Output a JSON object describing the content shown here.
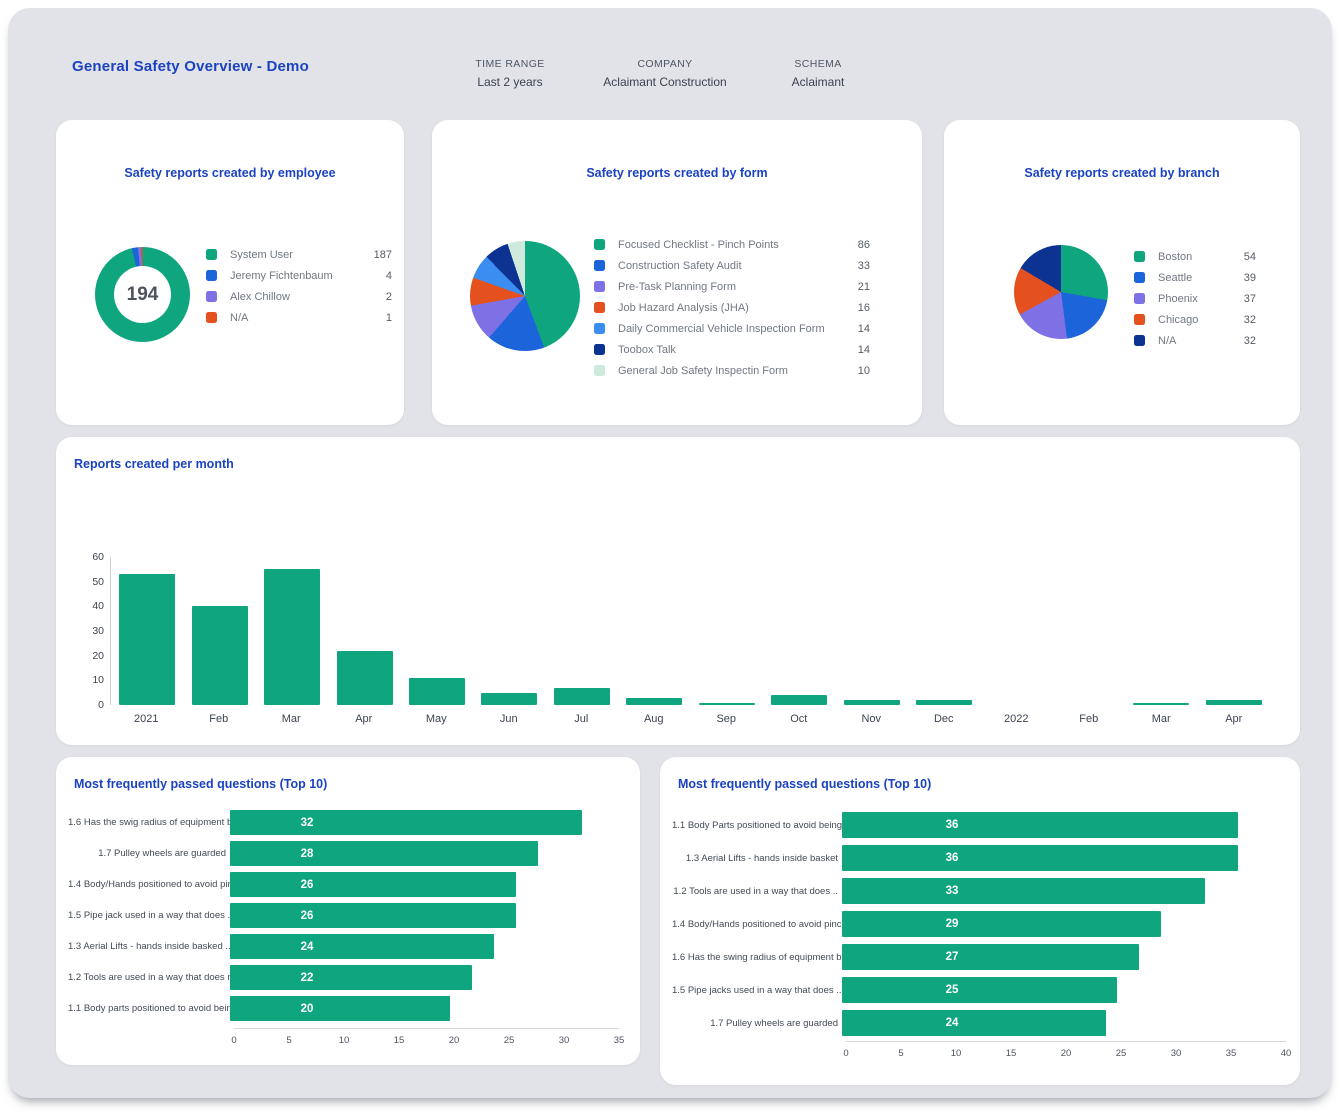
{
  "header": {
    "title": "General Safety Overview - Demo",
    "filters": [
      {
        "label": "TIME RANGE",
        "value": "Last 2 years"
      },
      {
        "label": "COMPANY",
        "value": "Aclaimant Construction"
      },
      {
        "label": "SCHEMA",
        "value": "Aclaimant"
      }
    ]
  },
  "colors": {
    "panel_bg": "#e2e3e8",
    "card_bg": "#ffffff",
    "title_blue": "#1b43c1",
    "green": "#0ea57f",
    "blue": "#1c64d9",
    "purple": "#7e71e6",
    "orange": "#e4511e",
    "light_blue": "#3c8df1",
    "navy": "#0c3391",
    "mint": "#cdeadd"
  },
  "chart_data": [
    {
      "id": "employee",
      "type": "pie",
      "variant": "donut",
      "title": "Safety reports created by employee",
      "center_total": "194",
      "legend_position": "right",
      "series": [
        {
          "name": "System User",
          "value": 187,
          "color": "#0ea57f"
        },
        {
          "name": "Jeremy Fichtenbaum",
          "value": 4,
          "color": "#1c64d9"
        },
        {
          "name": "Alex Chillow",
          "value": 2,
          "color": "#7e71e6"
        },
        {
          "name": "N/A",
          "value": 1,
          "color": "#e4511e"
        }
      ]
    },
    {
      "id": "form",
      "type": "pie",
      "variant": "pie",
      "title": "Safety reports created by form",
      "legend_position": "right",
      "series": [
        {
          "name": "Focused Checklist - Pinch Points",
          "value": 86,
          "color": "#0ea57f"
        },
        {
          "name": "Construction Safety Audit",
          "value": 33,
          "color": "#1c64d9"
        },
        {
          "name": "Pre-Task Planning Form",
          "value": 21,
          "color": "#7e71e6"
        },
        {
          "name": "Job Hazard Analysis (JHA)",
          "value": 16,
          "color": "#e4511e"
        },
        {
          "name": "Daily Commercial Vehicle Inspection Form",
          "value": 14,
          "color": "#3c8df1"
        },
        {
          "name": "Toobox Talk",
          "value": 14,
          "color": "#0c3391"
        },
        {
          "name": "General Job Safety Inspectin Form",
          "value": 10,
          "color": "#cdeadd"
        }
      ]
    },
    {
      "id": "branch",
      "type": "pie",
      "variant": "pie",
      "title": "Safety reports created by branch",
      "legend_position": "right",
      "series": [
        {
          "name": "Boston",
          "value": 54,
          "color": "#0ea57f"
        },
        {
          "name": "Seattle",
          "value": 39,
          "color": "#1c64d9"
        },
        {
          "name": "Phoenix",
          "value": 37,
          "color": "#7e71e6"
        },
        {
          "name": "Chicago",
          "value": 32,
          "color": "#e4511e"
        },
        {
          "name": "N/A",
          "value": 32,
          "color": "#0c3391"
        }
      ]
    },
    {
      "id": "monthly",
      "type": "bar",
      "title": "Reports created per month",
      "categories": [
        "2021",
        "Feb",
        "Mar",
        "Apr",
        "May",
        "Jun",
        "Jul",
        "Aug",
        "Sep",
        "Oct",
        "Nov",
        "Dec",
        "2022",
        "Feb",
        "Mar",
        "Apr"
      ],
      "values": [
        53,
        40,
        55,
        22,
        11,
        5,
        7,
        3,
        1,
        4,
        2,
        2,
        0,
        0,
        1,
        2
      ],
      "ylabel": "",
      "xlabel": "",
      "ylim": [
        0,
        60
      ],
      "yticks": [
        0,
        10,
        20,
        30,
        40,
        50,
        60
      ],
      "grid": false,
      "bar_color": "#0ea57f"
    },
    {
      "id": "passed_left",
      "type": "bar",
      "variant": "horizontal",
      "title": "Most frequently passed questions (Top 10)",
      "categories": [
        "1.6 Has the swig radius of equipment be",
        "1.7 Pulley wheels are guarded",
        "1.4 Body/Hands positioned to avoid pinch",
        "1.5 Pipe jack used in a way that does ..",
        "1.3 Aerial Lifts - hands inside basked ..",
        "1.2 Tools are used in a way that does not..",
        "1.1 Body parts positioned to avoid being.."
      ],
      "values": [
        32,
        28,
        26,
        26,
        24,
        22,
        20
      ],
      "xlim": [
        0,
        35
      ],
      "xticks": [
        0,
        5,
        10,
        15,
        20,
        25,
        30,
        35
      ],
      "grid": false,
      "bar_color": "#0ea57f",
      "value_label_frac": 0.2
    },
    {
      "id": "passed_right",
      "type": "bar",
      "variant": "horizontal",
      "title": "Most frequently passed questions (Top 10)",
      "categories": [
        "1.1 Body Parts positioned to avoid being",
        "1.3 Aerial Lifts - hands inside basket",
        "1.2 Tools are used in a way that does ..",
        "1.4 Body/Hands positioned to avoid pinch ..",
        "1.6 Has the swing radius of equipment be..",
        "1.5 Pipe jacks used in a way that does ..",
        "1.7 Pulley wheels are guarded"
      ],
      "values": [
        36,
        36,
        33,
        29,
        27,
        25,
        24
      ],
      "xlim": [
        0,
        40
      ],
      "xticks": [
        0,
        5,
        10,
        15,
        20,
        25,
        30,
        35,
        40
      ],
      "grid": false,
      "bar_color": "#0ea57f",
      "value_label_frac": 0.25
    }
  ]
}
